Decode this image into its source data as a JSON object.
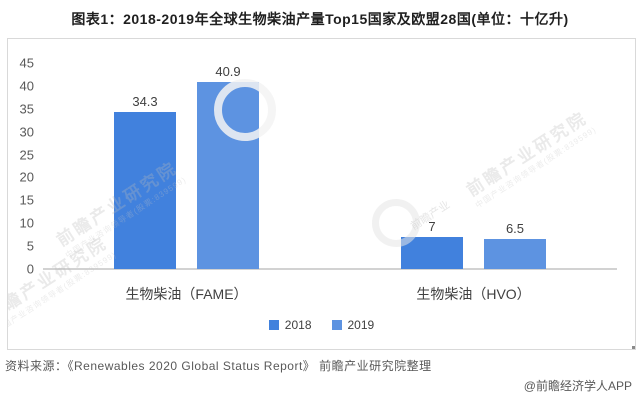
{
  "page": {
    "title": "图表1：2018-2019年全球生物柴油产量Top15国家及欧盟28国(单位：十亿升)"
  },
  "chart_data": {
    "type": "bar",
    "title": "2018-2019年全球生物柴油产量Top15国家及欧盟28国",
    "unit": "十亿升",
    "categories": [
      "生物柴油（FAME）",
      "生物柴油（HVO）"
    ],
    "series": [
      {
        "name": "2018",
        "values": [
          34.3,
          7
        ],
        "color": "#4181dd"
      },
      {
        "name": "2019",
        "values": [
          40.9,
          6.5
        ],
        "color": "#5d93e1"
      }
    ],
    "ylim": [
      0,
      45
    ],
    "yticks": [
      0,
      5,
      10,
      15,
      20,
      25,
      30,
      35,
      40,
      45
    ],
    "grid": false,
    "legend_position": "bottom"
  },
  "footer": {
    "source": "资料来源：《Renewables 2020 Global Status Report》 前瞻产业研究院整理",
    "credit": "@前瞻经济学人APP"
  },
  "watermark": {
    "brand": "前瞻产业研究院",
    "tagline": "中国产业咨询领导者(股票:839599)",
    "logo": "前瞻产业"
  },
  "colors": {
    "bar_2018": "#4181dd",
    "bar_2019": "#5d93e1",
    "axis_line": "#d2d2d2",
    "frame_border": "#d9d9d9",
    "tick_text": "#595959",
    "label_text": "#404040",
    "title_text": "#1f1f1f"
  }
}
